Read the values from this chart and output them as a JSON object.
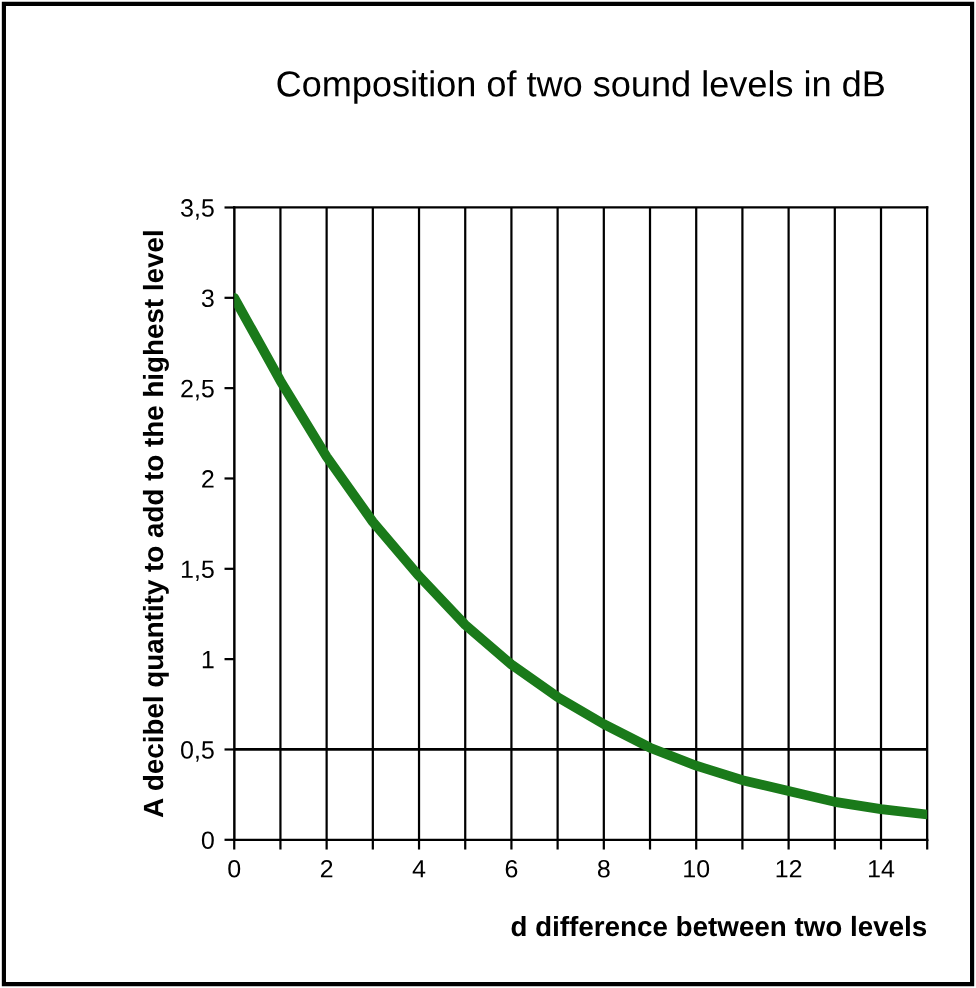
{
  "chart_data": {
    "type": "line",
    "title": "Composition of two sound levels in dB",
    "xlabel": "d difference between two levels",
    "ylabel": "A decibel quantity to add to the highest level",
    "x": [
      0,
      1,
      2,
      3,
      4,
      5,
      6,
      7,
      8,
      9,
      10,
      11,
      12,
      13,
      14,
      15
    ],
    "series": [
      {
        "color": "#1a7a1a",
        "values": [
          3.0,
          2.54,
          2.12,
          1.76,
          1.46,
          1.19,
          0.97,
          0.79,
          0.64,
          0.51,
          0.41,
          0.33,
          0.27,
          0.21,
          0.17,
          0.14
        ]
      }
    ],
    "xlim": [
      0,
      15
    ],
    "ylim": [
      0,
      3.5
    ],
    "xticks": [
      0,
      {
        "value": 1,
        "label": null
      },
      2,
      {
        "value": 3,
        "label": null
      },
      4,
      {
        "value": 5,
        "label": null
      },
      6,
      {
        "value": 7,
        "label": null
      },
      8,
      {
        "value": 9,
        "label": null
      },
      10,
      {
        "value": 11,
        "label": null
      },
      12,
      {
        "value": 13,
        "label": null
      },
      14,
      {
        "value": 15,
        "label": null
      }
    ],
    "yticks": [
      0,
      {
        "value": 0.5,
        "label": "0,5"
      },
      1,
      {
        "value": 1.5,
        "label": "1,5"
      },
      2,
      {
        "value": 2.5,
        "label": "2,5"
      },
      3,
      {
        "value": 3.5,
        "label": "3,5"
      }
    ],
    "ref_lines": [
      {
        "axis": "y",
        "value": 0.5,
        "color": "#000000"
      }
    ],
    "grid": "x",
    "marker": "none",
    "line_style": "solid"
  }
}
